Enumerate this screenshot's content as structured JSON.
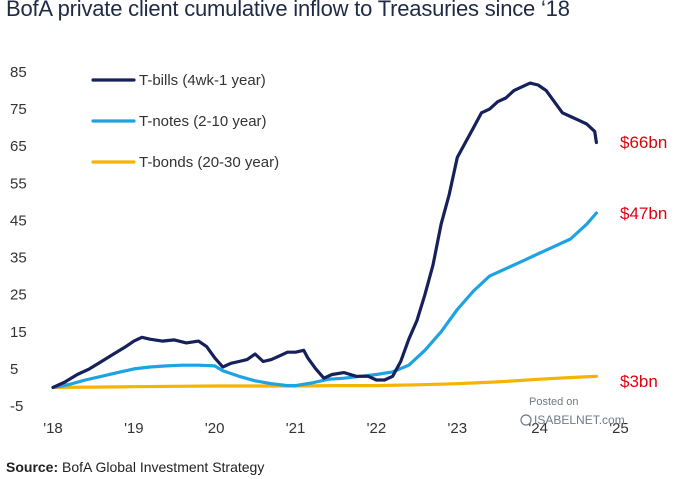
{
  "header": {
    "title": "BofA private client cumulative inflow to Treasuries since ‘18"
  },
  "source": {
    "label": "Source:",
    "text": "BofA Global Investment Strategy"
  },
  "watermark": {
    "line1": "Posted on",
    "line2": "ISABELNET.com"
  },
  "colors": {
    "tbills": "#16205b",
    "tnotes": "#1ea3e2",
    "tbonds": "#f5b400",
    "end_labels": "#e3000f"
  },
  "chart_data": {
    "type": "line",
    "title": "BofA private client cumulative inflow to Treasuries since ‘18",
    "xlabel": "",
    "ylabel": "",
    "ylim": [
      -5,
      85
    ],
    "yticks": [
      85,
      75,
      65,
      55,
      45,
      35,
      25,
      15,
      5,
      -5
    ],
    "xlim": [
      2018.0,
      2025.0
    ],
    "xticks": [
      {
        "value": 2018,
        "label": "'18"
      },
      {
        "value": 2019,
        "label": "'19"
      },
      {
        "value": 2020,
        "label": "'20"
      },
      {
        "value": 2021,
        "label": "'21"
      },
      {
        "value": 2022,
        "label": "'22"
      },
      {
        "value": 2023,
        "label": "'23"
      },
      {
        "value": 2024,
        "label": "'24"
      },
      {
        "value": 2025,
        "label": "'25"
      }
    ],
    "grid": false,
    "legend_position": "top-left",
    "series": [
      {
        "name": "T-bills (4wk-1 year)",
        "color_key": "tbills",
        "end_label": "$66bn",
        "x": [
          2018.0,
          2018.15,
          2018.3,
          2018.45,
          2018.6,
          2018.75,
          2018.9,
          2019.0,
          2019.1,
          2019.2,
          2019.35,
          2019.5,
          2019.65,
          2019.8,
          2019.9,
          2020.0,
          2020.1,
          2020.2,
          2020.3,
          2020.4,
          2020.5,
          2020.6,
          2020.7,
          2020.8,
          2020.9,
          2021.0,
          2021.1,
          2021.15,
          2021.25,
          2021.35,
          2021.45,
          2021.6,
          2021.75,
          2021.9,
          2022.0,
          2022.1,
          2022.2,
          2022.3,
          2022.4,
          2022.5,
          2022.6,
          2022.7,
          2022.8,
          2022.9,
          2023.0,
          2023.1,
          2023.2,
          2023.3,
          2023.4,
          2023.5,
          2023.6,
          2023.7,
          2023.8,
          2023.9,
          2024.0,
          2024.1,
          2024.2,
          2024.3,
          2024.4,
          2024.5,
          2024.6,
          2024.7,
          2024.72
        ],
        "y": [
          0,
          1.5,
          3.5,
          5,
          7,
          9,
          11,
          12.5,
          13.5,
          13,
          12.5,
          12.8,
          12,
          12.5,
          11,
          8,
          5.5,
          6.5,
          7,
          7.5,
          9,
          7,
          7.5,
          8.5,
          9.5,
          9.5,
          10,
          8,
          5,
          2.5,
          3.5,
          4,
          3,
          3,
          2,
          2,
          3,
          7,
          13,
          18,
          25,
          33,
          44,
          52,
          62,
          66,
          70,
          74,
          75,
          77,
          78,
          80,
          81,
          82,
          81.5,
          80,
          77,
          74,
          73,
          72,
          71,
          69,
          66
        ]
      },
      {
        "name": "T-notes (2-10 year)",
        "color_key": "tnotes",
        "end_label": "$47bn",
        "x": [
          2018.0,
          2018.2,
          2018.4,
          2018.6,
          2018.8,
          2019.0,
          2019.2,
          2019.4,
          2019.6,
          2019.8,
          2020.0,
          2020.1,
          2020.3,
          2020.5,
          2020.7,
          2020.9,
          2021.0,
          2021.2,
          2021.4,
          2021.6,
          2021.8,
          2022.0,
          2022.2,
          2022.4,
          2022.6,
          2022.8,
          2023.0,
          2023.2,
          2023.4,
          2023.6,
          2023.8,
          2024.0,
          2024.2,
          2024.4,
          2024.6,
          2024.72
        ],
        "y": [
          0,
          0.8,
          2,
          3,
          4,
          5,
          5.5,
          5.8,
          6,
          6,
          5.8,
          4.5,
          3,
          1.8,
          1,
          0.5,
          0.5,
          1.2,
          2.2,
          2.5,
          3,
          3.5,
          4.2,
          6,
          10,
          15,
          21,
          26,
          30,
          32,
          34,
          36,
          38,
          40,
          44,
          47
        ]
      },
      {
        "name": "T-bonds (20-30 year)",
        "color_key": "tbonds",
        "end_label": "$3bn",
        "x": [
          2018.0,
          2018.5,
          2019.0,
          2019.5,
          2020.0,
          2020.5,
          2021.0,
          2021.5,
          2022.0,
          2022.5,
          2023.0,
          2023.5,
          2024.0,
          2024.5,
          2024.72
        ],
        "y": [
          0,
          0.1,
          0.2,
          0.3,
          0.4,
          0.4,
          0.4,
          0.5,
          0.5,
          0.7,
          1,
          1.5,
          2.2,
          2.8,
          3
        ]
      }
    ]
  }
}
